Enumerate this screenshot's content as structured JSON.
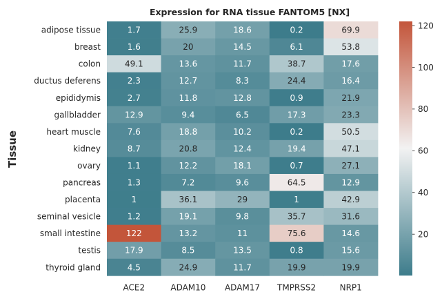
{
  "chart_data": {
    "type": "heatmap",
    "title": "Expression for RNA tissue FANTOM5 [NX]",
    "xlabel": "",
    "ylabel": "Tissue",
    "columns": [
      "ACE2",
      "ADAM10",
      "ADAM17",
      "TMPRSS2",
      "NRP1"
    ],
    "rows": [
      "adipose tissue",
      "breast",
      "colon",
      "ductus deferens",
      "epididymis",
      "gallbladder",
      "heart muscle",
      "kidney",
      "ovary",
      "pancreas",
      "placenta",
      "seminal vesicle",
      "small intestine",
      "testis",
      "thyroid gland"
    ],
    "values": [
      [
        1.7,
        25.9,
        18.6,
        0.2,
        69.9
      ],
      [
        1.6,
        20,
        14.5,
        6.1,
        53.8
      ],
      [
        49.1,
        13.6,
        11.7,
        38.7,
        17.6
      ],
      [
        2.3,
        12.7,
        8.3,
        24.4,
        16.4
      ],
      [
        2.7,
        11.8,
        12.8,
        0.9,
        21.9
      ],
      [
        12.9,
        9.4,
        6.5,
        17.3,
        23.3
      ],
      [
        7.6,
        18.8,
        10.2,
        0.2,
        50.5
      ],
      [
        8.7,
        20.8,
        12.4,
        19.4,
        47.1
      ],
      [
        1.1,
        12.2,
        18.1,
        0.7,
        27.1
      ],
      [
        1.3,
        7.2,
        9.6,
        64.5,
        12.9
      ],
      [
        1,
        36.1,
        29,
        1,
        42.9
      ],
      [
        1.2,
        19.1,
        9.8,
        35.7,
        31.6
      ],
      [
        122,
        13.2,
        11,
        75.6,
        14.6
      ],
      [
        17.9,
        8.5,
        13.5,
        0.8,
        15.6
      ],
      [
        4.5,
        24.9,
        11.7,
        19.9,
        19.9
      ]
    ],
    "value_labels": [
      [
        "1.7",
        "25.9",
        "18.6",
        "0.2",
        "69.9"
      ],
      [
        "1.6",
        "20",
        "14.5",
        "6.1",
        "53.8"
      ],
      [
        "49.1",
        "13.6",
        "11.7",
        "38.7",
        "17.6"
      ],
      [
        "2.3",
        "12.7",
        "8.3",
        "24.4",
        "16.4"
      ],
      [
        "2.7",
        "11.8",
        "12.8",
        "0.9",
        "21.9"
      ],
      [
        "12.9",
        "9.4",
        "6.5",
        "17.3",
        "23.3"
      ],
      [
        "7.6",
        "18.8",
        "10.2",
        "0.2",
        "50.5"
      ],
      [
        "8.7",
        "20.8",
        "12.4",
        "19.4",
        "47.1"
      ],
      [
        "1.1",
        "12.2",
        "18.1",
        "0.7",
        "27.1"
      ],
      [
        "1.3",
        "7.2",
        "9.6",
        "64.5",
        "12.9"
      ],
      [
        "1",
        "36.1",
        "29",
        "1",
        "42.9"
      ],
      [
        "1.2",
        "19.1",
        "9.8",
        "35.7",
        "31.6"
      ],
      [
        "122",
        "13.2",
        "11",
        "75.6",
        "14.6"
      ],
      [
        "17.9",
        "8.5",
        "13.5",
        "0.8",
        "15.6"
      ],
      [
        "4.5",
        "24.9",
        "11.7",
        "19.9",
        "19.9"
      ]
    ],
    "colorbar": {
      "range": [
        0.2,
        122
      ],
      "ticks": [
        20,
        40,
        60,
        80,
        100,
        120
      ],
      "tick_labels": [
        "20",
        "40",
        "60",
        "80",
        "100",
        "120"
      ],
      "colormap": "diverging teal-to-red",
      "low_color": "#3d7c8b",
      "mid_color": "#f2f2f2",
      "high_color": "#c3553a"
    },
    "annotated": true,
    "legend": "colorbar right"
  }
}
